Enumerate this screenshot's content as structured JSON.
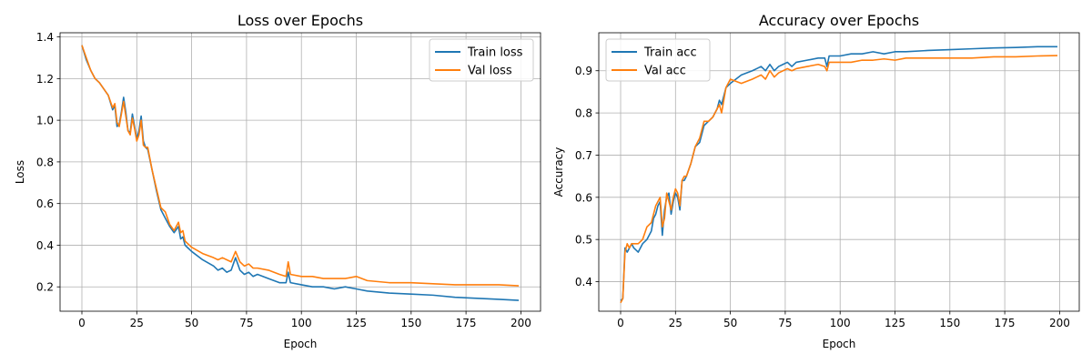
{
  "chart_data": [
    {
      "type": "line",
      "title": "Loss over Epochs",
      "xlabel": "Epoch",
      "ylabel": "Loss",
      "xlim": [
        -9.95,
        208.95
      ],
      "ylim": [
        0.083,
        1.42
      ],
      "xticks": [
        0,
        25,
        50,
        75,
        100,
        125,
        150,
        175,
        200
      ],
      "yticks": [
        0.2,
        0.4,
        0.6,
        0.8,
        1.0,
        1.2,
        1.4
      ],
      "ytick_format": "%.1f",
      "grid": true,
      "legend": "top-right",
      "series": [
        {
          "name": "Train loss",
          "color": "#1f77b4",
          "x": [
            0,
            2,
            4,
            6,
            8,
            10,
            12,
            14,
            15,
            16,
            17,
            18,
            19,
            20,
            21,
            22,
            23,
            24,
            25,
            26,
            27,
            28,
            29,
            30,
            32,
            34,
            36,
            38,
            40,
            42,
            44,
            45,
            46,
            47,
            48,
            50,
            55,
            60,
            62,
            64,
            66,
            68,
            70,
            72,
            74,
            76,
            78,
            80,
            85,
            90,
            93,
            94,
            95,
            100,
            105,
            110,
            115,
            120,
            125,
            130,
            140,
            150,
            160,
            170,
            180,
            190,
            199
          ],
          "y": [
            1.36,
            1.29,
            1.24,
            1.2,
            1.18,
            1.15,
            1.12,
            1.05,
            1.07,
            0.97,
            0.98,
            1.04,
            1.11,
            1.04,
            0.95,
            0.94,
            1.03,
            0.97,
            0.91,
            0.95,
            1.02,
            0.9,
            0.87,
            0.86,
            0.76,
            0.66,
            0.57,
            0.53,
            0.49,
            0.46,
            0.49,
            0.43,
            0.44,
            0.4,
            0.39,
            0.37,
            0.33,
            0.3,
            0.28,
            0.29,
            0.27,
            0.28,
            0.34,
            0.28,
            0.26,
            0.27,
            0.25,
            0.26,
            0.24,
            0.22,
            0.22,
            0.27,
            0.22,
            0.21,
            0.2,
            0.2,
            0.19,
            0.2,
            0.19,
            0.18,
            0.17,
            0.165,
            0.16,
            0.15,
            0.145,
            0.14,
            0.135
          ]
        },
        {
          "name": "Val loss",
          "color": "#ff7f0e",
          "x": [
            0,
            2,
            4,
            6,
            8,
            10,
            12,
            14,
            15,
            16,
            17,
            18,
            19,
            20,
            21,
            22,
            23,
            24,
            25,
            26,
            27,
            28,
            29,
            30,
            32,
            34,
            36,
            38,
            40,
            42,
            44,
            45,
            46,
            47,
            48,
            50,
            55,
            60,
            62,
            64,
            66,
            68,
            70,
            72,
            74,
            76,
            78,
            80,
            85,
            90,
            93,
            94,
            95,
            100,
            105,
            110,
            115,
            120,
            125,
            130,
            140,
            150,
            160,
            170,
            180,
            190,
            199
          ],
          "y": [
            1.36,
            1.3,
            1.24,
            1.2,
            1.18,
            1.15,
            1.12,
            1.06,
            1.08,
            0.99,
            0.97,
            1.03,
            1.09,
            1.02,
            0.95,
            0.93,
            1.01,
            0.96,
            0.9,
            0.93,
            1.0,
            0.88,
            0.87,
            0.87,
            0.76,
            0.67,
            0.58,
            0.56,
            0.5,
            0.47,
            0.51,
            0.46,
            0.47,
            0.42,
            0.41,
            0.39,
            0.36,
            0.34,
            0.33,
            0.34,
            0.33,
            0.32,
            0.37,
            0.32,
            0.3,
            0.31,
            0.29,
            0.29,
            0.28,
            0.26,
            0.25,
            0.32,
            0.26,
            0.25,
            0.25,
            0.24,
            0.24,
            0.24,
            0.25,
            0.23,
            0.22,
            0.22,
            0.215,
            0.21,
            0.21,
            0.21,
            0.205
          ]
        }
      ]
    },
    {
      "type": "line",
      "title": "Accuracy over Epochs",
      "xlabel": "Epoch",
      "ylabel": "Accuracy",
      "xlim": [
        -9.95,
        208.95
      ],
      "ylim": [
        0.33,
        0.99
      ],
      "xticks": [
        0,
        25,
        50,
        75,
        100,
        125,
        150,
        175,
        200
      ],
      "yticks": [
        0.4,
        0.5,
        0.6,
        0.7,
        0.8,
        0.9
      ],
      "ytick_format": "%.1f",
      "grid": true,
      "legend": "top-left",
      "series": [
        {
          "name": "Train acc",
          "color": "#1f77b4",
          "x": [
            0,
            1,
            2,
            3,
            4,
            5,
            6,
            8,
            10,
            12,
            14,
            15,
            16,
            17,
            18,
            19,
            20,
            21,
            22,
            23,
            24,
            25,
            26,
            27,
            28,
            29,
            30,
            32,
            34,
            36,
            38,
            40,
            42,
            44,
            45,
            46,
            47,
            48,
            50,
            55,
            60,
            62,
            64,
            66,
            68,
            70,
            72,
            74,
            76,
            78,
            80,
            85,
            90,
            93,
            94,
            95,
            100,
            105,
            110,
            115,
            120,
            125,
            130,
            140,
            150,
            160,
            170,
            180,
            190,
            199
          ],
          "y": [
            0.355,
            0.36,
            0.48,
            0.47,
            0.48,
            0.49,
            0.48,
            0.47,
            0.49,
            0.5,
            0.52,
            0.55,
            0.56,
            0.58,
            0.59,
            0.51,
            0.57,
            0.6,
            0.61,
            0.56,
            0.59,
            0.61,
            0.6,
            0.57,
            0.64,
            0.64,
            0.65,
            0.68,
            0.72,
            0.73,
            0.77,
            0.78,
            0.79,
            0.81,
            0.83,
            0.82,
            0.84,
            0.86,
            0.87,
            0.89,
            0.9,
            0.905,
            0.91,
            0.9,
            0.915,
            0.9,
            0.91,
            0.915,
            0.92,
            0.91,
            0.92,
            0.925,
            0.93,
            0.93,
            0.91,
            0.935,
            0.935,
            0.94,
            0.94,
            0.945,
            0.94,
            0.945,
            0.945,
            0.948,
            0.95,
            0.952,
            0.954,
            0.955,
            0.957,
            0.957
          ]
        },
        {
          "name": "Val acc",
          "color": "#ff7f0e",
          "x": [
            0,
            1,
            2,
            3,
            4,
            5,
            6,
            8,
            10,
            12,
            14,
            15,
            16,
            17,
            18,
            19,
            20,
            21,
            22,
            23,
            24,
            25,
            26,
            27,
            28,
            29,
            30,
            32,
            34,
            36,
            38,
            40,
            42,
            44,
            45,
            46,
            47,
            48,
            50,
            55,
            60,
            62,
            64,
            66,
            68,
            70,
            72,
            74,
            76,
            78,
            80,
            85,
            90,
            93,
            94,
            95,
            100,
            105,
            110,
            115,
            120,
            125,
            130,
            140,
            150,
            160,
            170,
            180,
            190,
            199
          ],
          "y": [
            0.35,
            0.36,
            0.47,
            0.49,
            0.48,
            0.49,
            0.49,
            0.49,
            0.5,
            0.53,
            0.54,
            0.56,
            0.58,
            0.59,
            0.6,
            0.53,
            0.55,
            0.61,
            0.59,
            0.57,
            0.6,
            0.62,
            0.61,
            0.58,
            0.64,
            0.65,
            0.65,
            0.68,
            0.72,
            0.74,
            0.78,
            0.78,
            0.79,
            0.81,
            0.82,
            0.8,
            0.83,
            0.86,
            0.88,
            0.87,
            0.88,
            0.885,
            0.89,
            0.88,
            0.9,
            0.885,
            0.895,
            0.9,
            0.905,
            0.9,
            0.905,
            0.91,
            0.915,
            0.91,
            0.9,
            0.92,
            0.92,
            0.92,
            0.925,
            0.925,
            0.928,
            0.925,
            0.93,
            0.93,
            0.93,
            0.93,
            0.933,
            0.933,
            0.935,
            0.936
          ]
        }
      ]
    }
  ]
}
